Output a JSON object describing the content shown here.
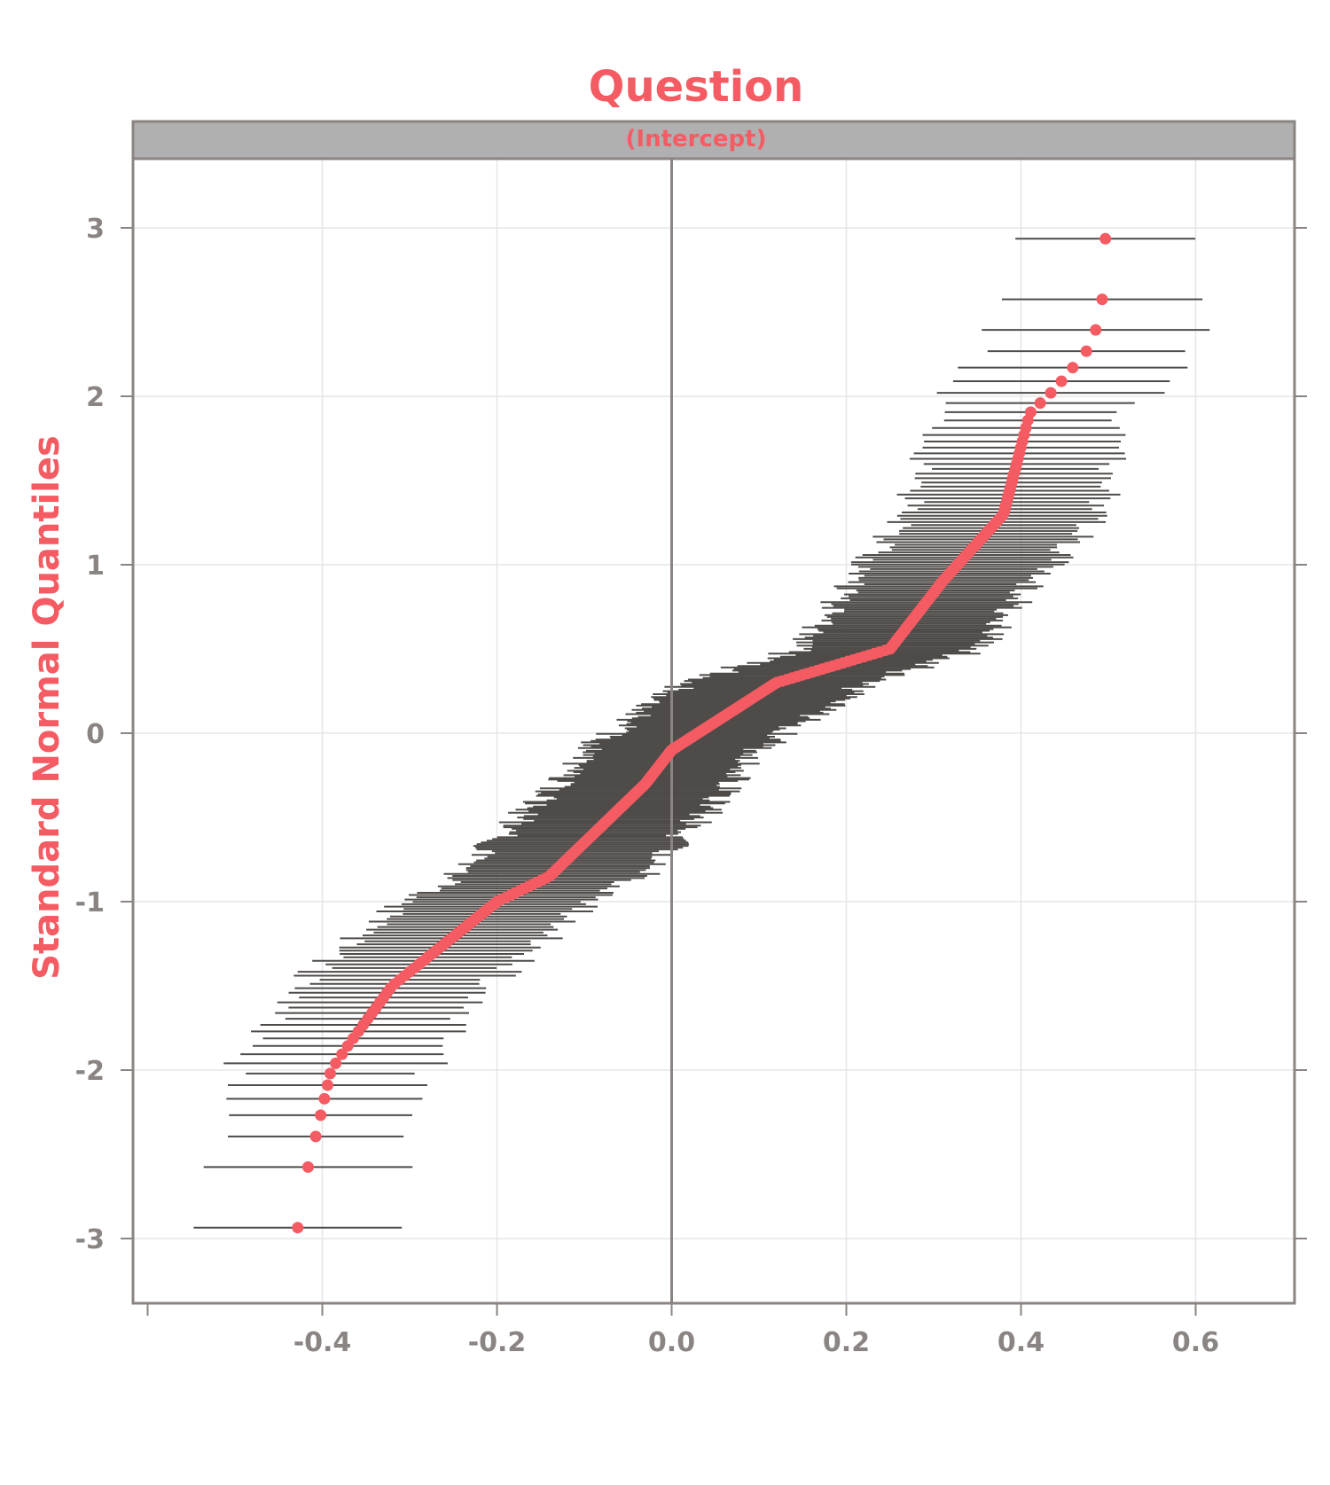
{
  "chart_data": {
    "type": "scatter",
    "title": "Question",
    "strip_label": "(Intercept)",
    "xlabel": "",
    "ylabel": "Standard Normal Quantiles",
    "xlim": [
      -0.6,
      0.71
    ],
    "ylim": [
      -3.4,
      3.42
    ],
    "x_ticks": [
      -0.4,
      -0.2,
      0.0,
      0.2,
      0.4,
      0.6
    ],
    "x_tick_labels": [
      "-0.4",
      "-0.2",
      "0.0",
      "0.2",
      "0.4",
      "0.6"
    ],
    "y_ticks": [
      -3,
      -2,
      -1,
      0,
      1,
      2,
      3
    ],
    "y_tick_labels": [
      "-3",
      "-2",
      "-1",
      "0",
      "1",
      "2",
      "3"
    ],
    "reference_line_x": 0,
    "grid": true,
    "n_points": 300,
    "quantile_curve": {
      "quantiles": [
        -3.0,
        -2.65,
        -2.45,
        -2.0,
        -1.85,
        -1.5,
        -1.25,
        -1.0,
        -0.85,
        -0.5,
        -0.3,
        -0.1,
        0.0,
        0.3,
        0.5,
        0.9,
        1.3,
        1.9,
        2.05,
        2.3,
        2.47,
        2.65,
        3.0
      ],
      "estimates": [
        -0.43,
        -0.42,
        -0.41,
        -0.39,
        -0.37,
        -0.32,
        -0.26,
        -0.2,
        -0.14,
        -0.07,
        -0.03,
        0.0,
        0.03,
        0.12,
        0.25,
        0.31,
        0.38,
        0.41,
        0.44,
        0.48,
        0.49,
        0.495,
        0.497
      ]
    },
    "interval_half_width": {
      "outer": 0.12,
      "center": 0.1
    },
    "colors": {
      "points": "#f45b63",
      "intervals": "#4f4b49",
      "title": "#f45b63",
      "strip_bg": "#b0b0b0",
      "axis": "#8a8482",
      "grid": "#e6e6e6",
      "tick_text": "#8a8482"
    }
  }
}
